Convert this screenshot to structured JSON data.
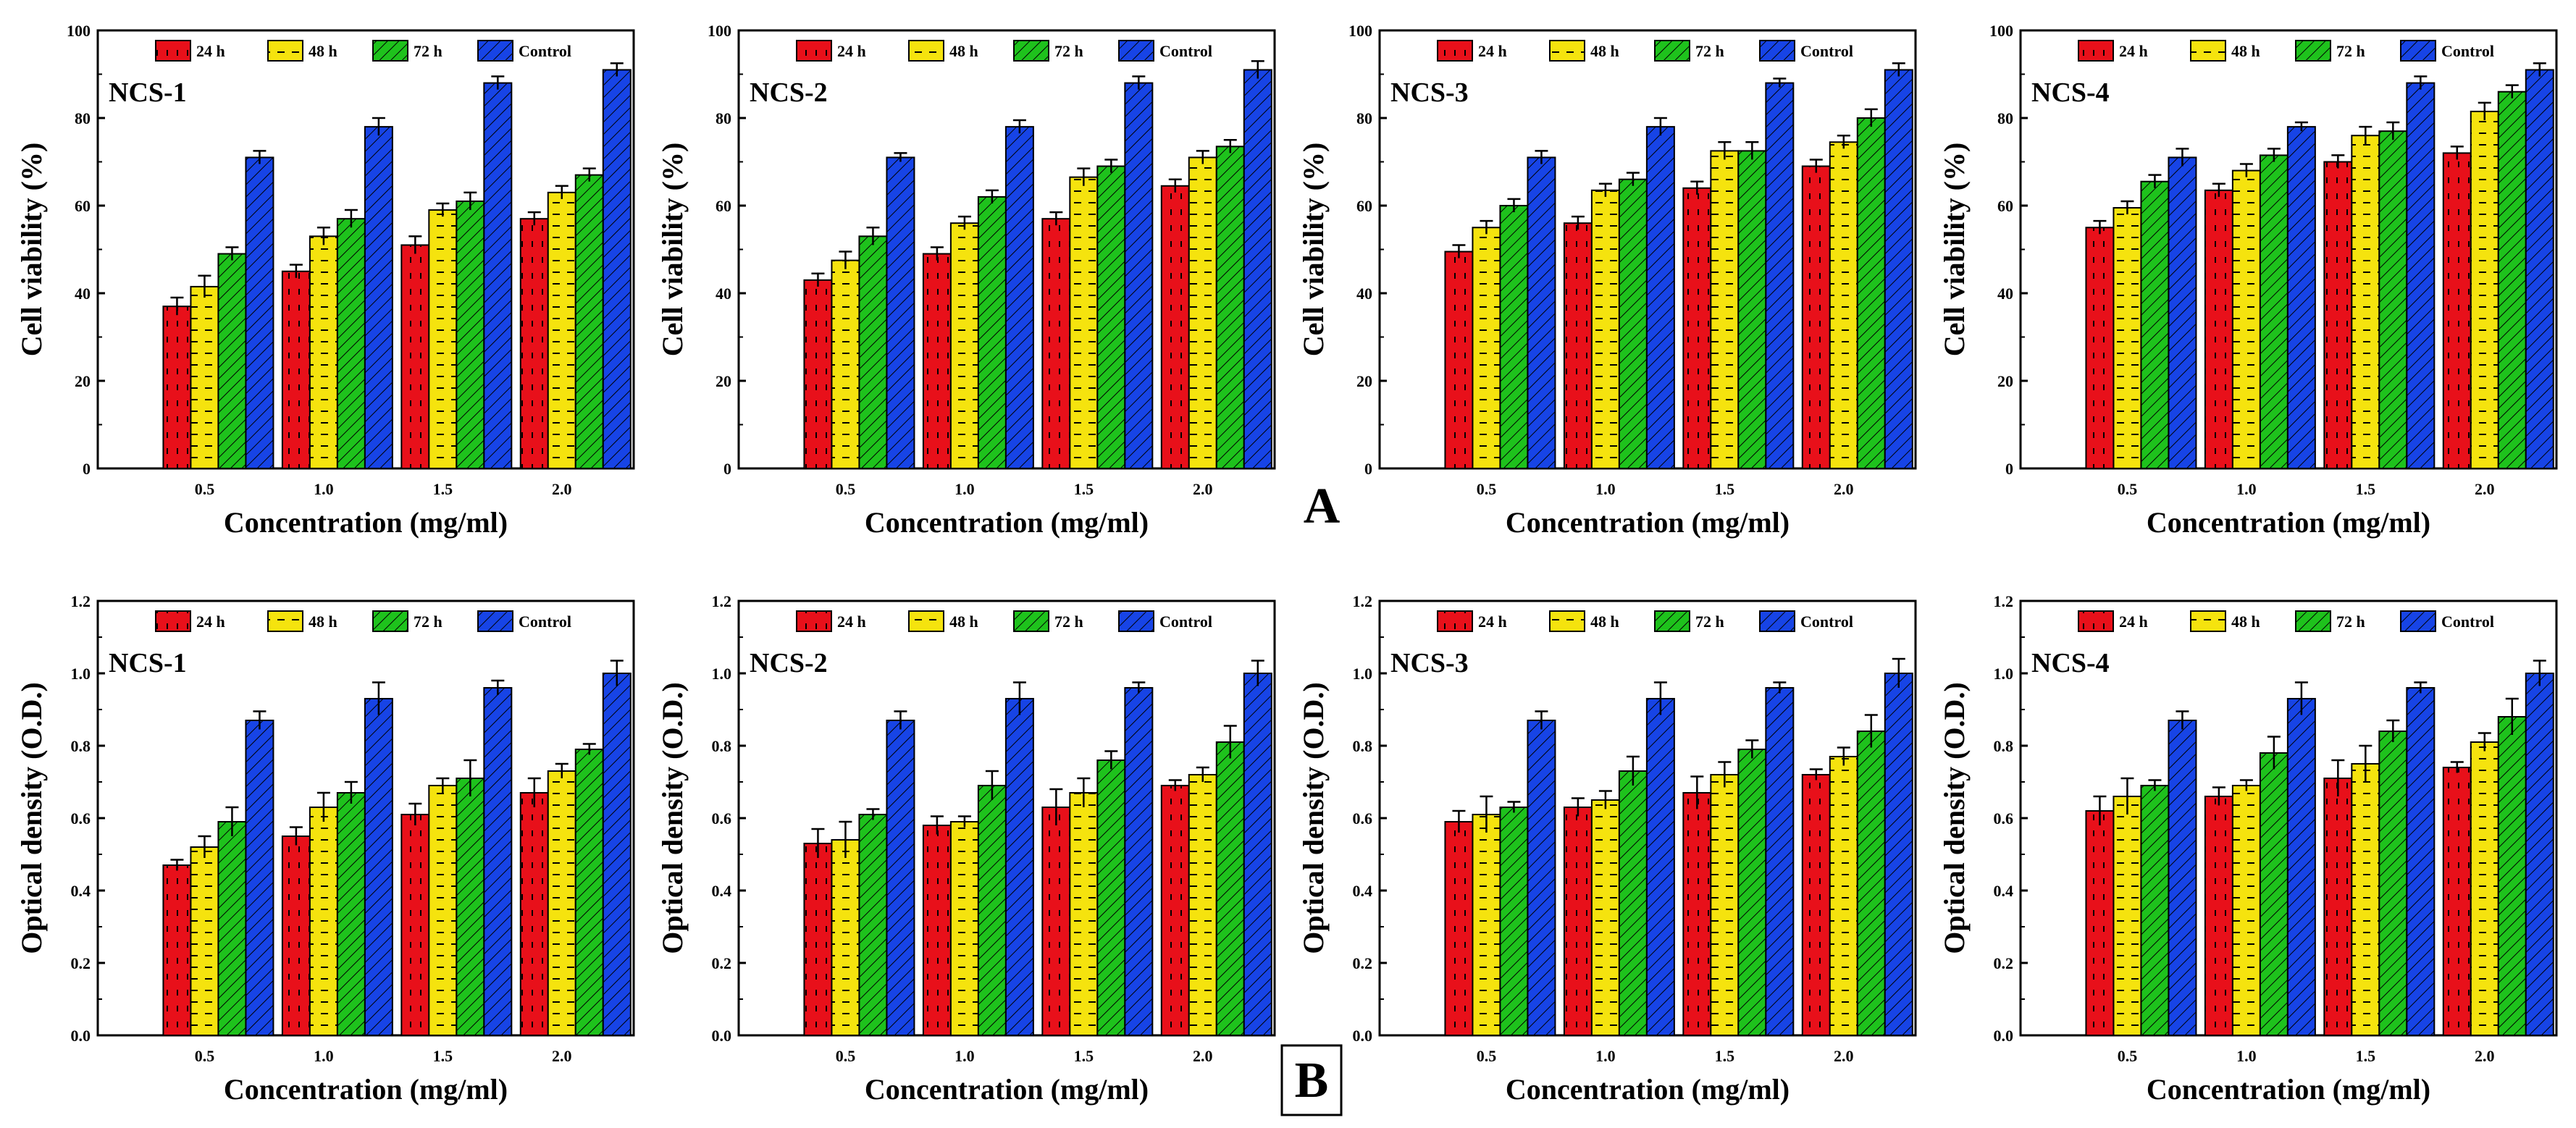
{
  "figure_labels": {
    "A": "A",
    "B": "B"
  },
  "colors": {
    "24 h": "#e8101a",
    "48 h": "#f5e30e",
    "72 h": "#1ec21c",
    "Control": "#1744e6"
  },
  "chart_data": [
    {
      "type": "bar",
      "title": "NCS-1",
      "xlabel": "Concentration (mg/ml)",
      "ylabel": "Cell viability (%)",
      "ylim": [
        0,
        100
      ],
      "yticks": [
        0,
        20,
        40,
        60,
        80,
        100
      ],
      "yticklabels": [
        "0",
        "20",
        "40",
        "60",
        "80",
        "100"
      ],
      "categories": [
        "0.5",
        "1.0",
        "1.5",
        "2.0"
      ],
      "series": [
        {
          "name": "24 h",
          "values": [
            37,
            45,
            51,
            57
          ],
          "errors": [
            2,
            1.5,
            2,
            1.5
          ]
        },
        {
          "name": "48 h",
          "values": [
            41.5,
            53,
            59,
            63
          ],
          "errors": [
            2.5,
            2,
            1.5,
            1.5
          ]
        },
        {
          "name": "72 h",
          "values": [
            49,
            57,
            61,
            67
          ],
          "errors": [
            1.5,
            2,
            2,
            1.5
          ]
        },
        {
          "name": "Control",
          "values": [
            71,
            78,
            88,
            91
          ],
          "errors": [
            1.5,
            2,
            1.5,
            1.5
          ]
        }
      ],
      "legend": "top"
    },
    {
      "type": "bar",
      "title": "NCS-2",
      "xlabel": "Concentration (mg/ml)",
      "ylabel": "Cell viability (%)",
      "ylim": [
        0,
        100
      ],
      "yticks": [
        0,
        20,
        40,
        60,
        80,
        100
      ],
      "yticklabels": [
        "0",
        "20",
        "40",
        "60",
        "80",
        "100"
      ],
      "categories": [
        "0.5",
        "1.0",
        "1.5",
        "2.0"
      ],
      "series": [
        {
          "name": "24 h",
          "values": [
            43,
            49,
            57,
            64.5
          ],
          "errors": [
            1.5,
            1.5,
            1.5,
            1.5
          ]
        },
        {
          "name": "48 h",
          "values": [
            47.5,
            56,
            66.5,
            71
          ],
          "errors": [
            2,
            1.5,
            2,
            1.5
          ]
        },
        {
          "name": "72 h",
          "values": [
            53,
            62,
            69,
            73.5
          ],
          "errors": [
            2,
            1.5,
            1.5,
            1.5
          ]
        },
        {
          "name": "Control",
          "values": [
            71,
            78,
            88,
            91
          ],
          "errors": [
            1,
            1.5,
            1.5,
            2
          ]
        }
      ],
      "legend": "top"
    },
    {
      "type": "bar",
      "title": "NCS-3",
      "xlabel": "Concentration (mg/ml)",
      "ylabel": "Cell viability (%)",
      "ylim": [
        0,
        100
      ],
      "yticks": [
        0,
        20,
        40,
        60,
        80,
        100
      ],
      "yticklabels": [
        "0",
        "20",
        "40",
        "60",
        "80",
        "100"
      ],
      "categories": [
        "0.5",
        "1.0",
        "1.5",
        "2.0"
      ],
      "series": [
        {
          "name": "24 h",
          "values": [
            49.5,
            56,
            64,
            69
          ],
          "errors": [
            1.5,
            1.5,
            1.5,
            1.5
          ]
        },
        {
          "name": "48 h",
          "values": [
            55,
            63.5,
            72.5,
            74.5
          ],
          "errors": [
            1.5,
            1.5,
            2,
            1.5
          ]
        },
        {
          "name": "72 h",
          "values": [
            60,
            66,
            72.5,
            80
          ],
          "errors": [
            1.5,
            1.5,
            2,
            2
          ]
        },
        {
          "name": "Control",
          "values": [
            71,
            78,
            88,
            91
          ],
          "errors": [
            1.5,
            2,
            1,
            1.5
          ]
        }
      ],
      "legend": "top"
    },
    {
      "type": "bar",
      "title": "NCS-4",
      "xlabel": "Concentration (mg/ml)",
      "ylabel": "Cell viability (%)",
      "ylim": [
        0,
        100
      ],
      "yticks": [
        0,
        20,
        40,
        60,
        80,
        100
      ],
      "yticklabels": [
        "0",
        "20",
        "40",
        "60",
        "80",
        "100"
      ],
      "categories": [
        "0.5",
        "1.0",
        "1.5",
        "2.0"
      ],
      "series": [
        {
          "name": "24 h",
          "values": [
            55,
            63.5,
            70,
            72
          ],
          "errors": [
            1.5,
            1.5,
            1.5,
            1.5
          ]
        },
        {
          "name": "48 h",
          "values": [
            59.5,
            68,
            76,
            81.5
          ],
          "errors": [
            1.5,
            1.5,
            2,
            2
          ]
        },
        {
          "name": "72 h",
          "values": [
            65.5,
            71.5,
            77,
            86
          ],
          "errors": [
            1.5,
            1.5,
            2,
            1.5
          ]
        },
        {
          "name": "Control",
          "values": [
            71,
            78,
            88,
            91
          ],
          "errors": [
            2,
            1,
            1.5,
            1.5
          ]
        }
      ],
      "legend": "top"
    },
    {
      "type": "bar",
      "title": "NCS-1",
      "xlabel": "Concentration (mg/ml)",
      "ylabel": "Optical density (O.D.)",
      "ylim": [
        0,
        1.2
      ],
      "yticks": [
        0,
        0.2,
        0.4,
        0.6,
        0.8,
        1.0,
        1.2
      ],
      "yticklabels": [
        "0.0",
        "0.2",
        "0.4",
        "0.6",
        "0.8",
        "1.0",
        "1.2"
      ],
      "categories": [
        "0.5",
        "1.0",
        "1.5",
        "2.0"
      ],
      "series": [
        {
          "name": "24 h",
          "values": [
            0.47,
            0.55,
            0.61,
            0.67
          ],
          "errors": [
            0.015,
            0.025,
            0.03,
            0.04
          ]
        },
        {
          "name": "48 h",
          "values": [
            0.52,
            0.63,
            0.69,
            0.73
          ],
          "errors": [
            0.03,
            0.04,
            0.02,
            0.02
          ]
        },
        {
          "name": "72 h",
          "values": [
            0.59,
            0.67,
            0.71,
            0.79
          ],
          "errors": [
            0.04,
            0.03,
            0.05,
            0.015
          ]
        },
        {
          "name": "Control",
          "values": [
            0.87,
            0.93,
            0.96,
            1.0
          ],
          "errors": [
            0.025,
            0.045,
            0.02,
            0.035
          ]
        }
      ],
      "legend": "top"
    },
    {
      "type": "bar",
      "title": "NCS-2",
      "xlabel": "Concentration (mg/ml)",
      "ylabel": "Optical density (O.D.)",
      "ylim": [
        0,
        1.2
      ],
      "yticks": [
        0,
        0.2,
        0.4,
        0.6,
        0.8,
        1.0,
        1.2
      ],
      "yticklabels": [
        "0.0",
        "0.2",
        "0.4",
        "0.6",
        "0.8",
        "1.0",
        "1.2"
      ],
      "categories": [
        "0.5",
        "1.0",
        "1.5",
        "2.0"
      ],
      "series": [
        {
          "name": "24 h",
          "values": [
            0.53,
            0.58,
            0.63,
            0.69
          ],
          "errors": [
            0.04,
            0.025,
            0.05,
            0.015
          ]
        },
        {
          "name": "48 h",
          "values": [
            0.54,
            0.59,
            0.67,
            0.72
          ],
          "errors": [
            0.05,
            0.015,
            0.04,
            0.02
          ]
        },
        {
          "name": "72 h",
          "values": [
            0.61,
            0.69,
            0.76,
            0.81
          ],
          "errors": [
            0.015,
            0.04,
            0.025,
            0.045
          ]
        },
        {
          "name": "Control",
          "values": [
            0.87,
            0.93,
            0.96,
            1.0
          ],
          "errors": [
            0.025,
            0.045,
            0.015,
            0.035
          ]
        }
      ],
      "legend": "top"
    },
    {
      "type": "bar",
      "title": "NCS-3",
      "xlabel": "Concentration (mg/ml)",
      "ylabel": "Optical density (O.D.)",
      "ylim": [
        0,
        1.2
      ],
      "yticks": [
        0,
        0.2,
        0.4,
        0.6,
        0.8,
        1.0,
        1.2
      ],
      "yticklabels": [
        "0.0",
        "0.2",
        "0.4",
        "0.6",
        "0.8",
        "1.0",
        "1.2"
      ],
      "categories": [
        "0.5",
        "1.0",
        "1.5",
        "2.0"
      ],
      "series": [
        {
          "name": "24 h",
          "values": [
            0.59,
            0.63,
            0.67,
            0.72
          ],
          "errors": [
            0.03,
            0.025,
            0.045,
            0.015
          ]
        },
        {
          "name": "48 h",
          "values": [
            0.61,
            0.65,
            0.72,
            0.77
          ],
          "errors": [
            0.05,
            0.025,
            0.035,
            0.025
          ]
        },
        {
          "name": "72 h",
          "values": [
            0.63,
            0.73,
            0.79,
            0.84
          ],
          "errors": [
            0.015,
            0.04,
            0.025,
            0.045
          ]
        },
        {
          "name": "Control",
          "values": [
            0.87,
            0.93,
            0.96,
            1.0
          ],
          "errors": [
            0.025,
            0.045,
            0.015,
            0.04
          ]
        }
      ],
      "legend": "top"
    },
    {
      "type": "bar",
      "title": "NCS-4",
      "xlabel": "Concentration (mg/ml)",
      "ylabel": "Optical density (O.D.)",
      "ylim": [
        0,
        1.2
      ],
      "yticks": [
        0,
        0.2,
        0.4,
        0.6,
        0.8,
        1.0,
        1.2
      ],
      "yticklabels": [
        "0.0",
        "0.2",
        "0.4",
        "0.6",
        "0.8",
        "1.0",
        "1.2"
      ],
      "categories": [
        "0.5",
        "1.0",
        "1.5",
        "2.0"
      ],
      "series": [
        {
          "name": "24 h",
          "values": [
            0.62,
            0.66,
            0.71,
            0.74
          ],
          "errors": [
            0.04,
            0.025,
            0.05,
            0.015
          ]
        },
        {
          "name": "48 h",
          "values": [
            0.66,
            0.69,
            0.75,
            0.81
          ],
          "errors": [
            0.05,
            0.015,
            0.05,
            0.025
          ]
        },
        {
          "name": "72 h",
          "values": [
            0.69,
            0.78,
            0.84,
            0.88
          ],
          "errors": [
            0.015,
            0.045,
            0.03,
            0.05
          ]
        },
        {
          "name": "Control",
          "values": [
            0.87,
            0.93,
            0.96,
            1.0
          ],
          "errors": [
            0.025,
            0.045,
            0.015,
            0.035
          ]
        }
      ],
      "legend": "top"
    }
  ]
}
